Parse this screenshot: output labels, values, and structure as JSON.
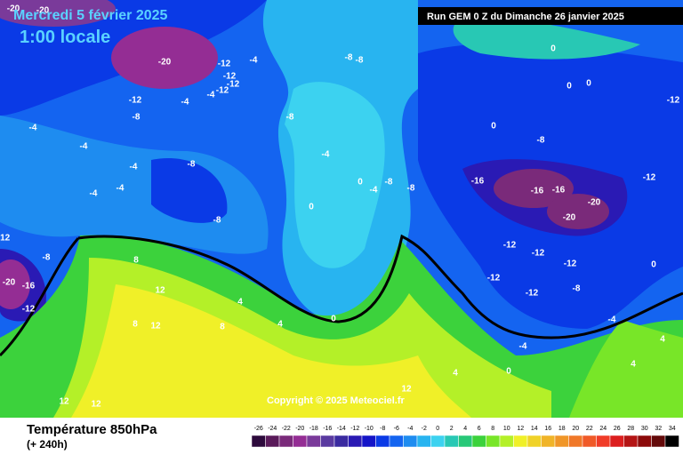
{
  "header": {
    "date": "Mercredi 5 février 2025",
    "time": "1:00 locale",
    "run": "Run GEM 0 Z du Dimanche 26 janvier 2025"
  },
  "copyright": "Copyright © 2025 Meteociel.fr",
  "footer": {
    "title": "Température 850hPa",
    "lead": "(+ 240h)"
  },
  "legend": {
    "ticks": [
      -26,
      -24,
      -22,
      -20,
      -18,
      -16,
      -14,
      -12,
      -10,
      -8,
      -6,
      -4,
      -2,
      0,
      2,
      4,
      6,
      8,
      10,
      12,
      14,
      16,
      18,
      20,
      22,
      24,
      26,
      28,
      30,
      32,
      34
    ],
    "colors": [
      "#2d0a3c",
      "#5a1a5a",
      "#7a2a7a",
      "#942d94",
      "#7a3a9a",
      "#5a3aa0",
      "#3a2aa0",
      "#2a1ab4",
      "#1414c8",
      "#0a3ae6",
      "#1464f0",
      "#1e8cf0",
      "#28b4f0",
      "#3cd2f0",
      "#28c8b4",
      "#28c878",
      "#3cd23c",
      "#78e628",
      "#b4f028",
      "#f0f028",
      "#f0d228",
      "#f0b428",
      "#f09628",
      "#f07828",
      "#f05a28",
      "#f03c28",
      "#dc1e1e",
      "#b41414",
      "#8c0a0a",
      "#640a0a",
      "#000000"
    ]
  },
  "map": {
    "labels": [
      -20,
      -20,
      -20,
      -12,
      -12,
      -4,
      -12,
      -12,
      -4,
      -4,
      -12,
      -8,
      -4,
      -4,
      -4,
      -8,
      -4,
      -4,
      -8,
      -12,
      -8,
      -20,
      -16,
      -12,
      -8,
      -8,
      -8,
      -4,
      0,
      -4,
      -8,
      -8,
      0,
      0,
      0,
      0,
      -12,
      0,
      -8,
      -16,
      -16,
      -16,
      -20,
      -20,
      -12,
      -12,
      -12,
      -12,
      -12,
      -12,
      -8,
      0,
      4,
      0,
      8,
      12,
      12,
      8,
      8,
      4,
      4,
      0,
      -4,
      -4,
      4,
      4,
      12,
      12,
      12
    ]
  }
}
